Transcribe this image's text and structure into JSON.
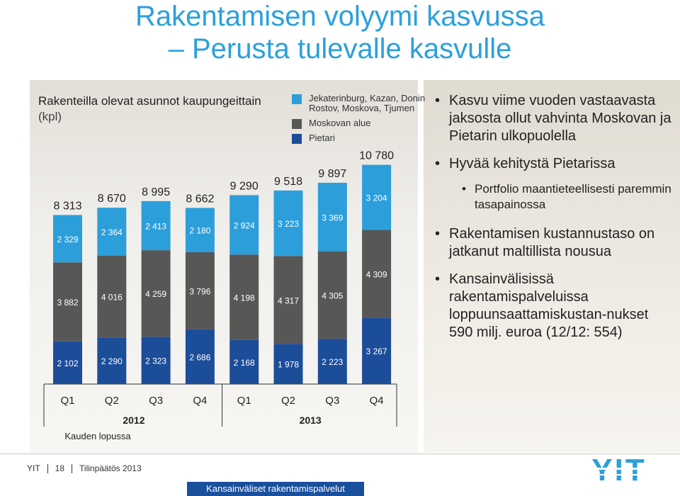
{
  "page": {
    "title_line1": "Rakentamisen volyymi kasvussa",
    "title_line2": "– Perusta tulevalle kasvulle"
  },
  "chart_data": {
    "type": "bar",
    "stacked": true,
    "title": "Rakenteilla olevat asunnot kaupungeittain",
    "subtitle": "(kpl)",
    "categories": [
      "Q1",
      "Q2",
      "Q3",
      "Q4",
      "Q1",
      "Q2",
      "Q3",
      "Q4"
    ],
    "groups": [
      {
        "label": "2012",
        "categories": [
          0,
          1,
          2,
          3
        ]
      },
      {
        "label": "2013",
        "categories": [
          4,
          5,
          6,
          7
        ]
      }
    ],
    "xlabel": "Kauden lopussa",
    "series": [
      {
        "name": "Pietari",
        "color": "#1c4d99",
        "values": [
          2102,
          2290,
          2323,
          2686,
          2168,
          1978,
          2223,
          3267
        ],
        "labels": [
          "2 102",
          "2 290",
          "2 323",
          "2 686",
          "2 168",
          "1 978",
          "2 223",
          "3 267"
        ]
      },
      {
        "name": "Moskovan alue",
        "color": "#575757",
        "values": [
          3882,
          4016,
          4259,
          3796,
          4198,
          4317,
          4305,
          4309
        ],
        "labels": [
          "3 882",
          "4 016",
          "4 259",
          "3 796",
          "4 198",
          "4 317",
          "4 305",
          "4 309"
        ]
      },
      {
        "name": "Jekaterinburg, Kazan, Donin Rostov, Moskova, Tjumen",
        "color": "#2c9fdb",
        "values": [
          2329,
          2364,
          2413,
          2180,
          2924,
          3223,
          3369,
          3204
        ],
        "labels": [
          "2 329",
          "2 364",
          "2 413",
          "2 180",
          "2 924",
          "3 223",
          "3 369",
          "3 204"
        ]
      }
    ],
    "totals": [
      8313,
      8670,
      8995,
      8662,
      9290,
      9518,
      9897,
      10780
    ],
    "total_labels": [
      "8 313",
      "8 670",
      "8 995",
      "8 662",
      "9 290",
      "9 518",
      "9 897",
      "10 780"
    ],
    "legend_order": [
      2,
      1,
      0
    ],
    "legend_position": "top-right"
  },
  "bullets": [
    {
      "text": "Kasvu viime vuoden vastaavasta jaksosta ollut vahvinta Moskovan ja Pietarin ulkopuolella",
      "sub": []
    },
    {
      "text": "Hyvää kehitystä Pietarissa",
      "sub": [
        "Portfolio maantieteellisesti paremmin tasapainossa"
      ]
    },
    {
      "text": "Rakentamisen kustannustaso on jatkanut maltillista nousua",
      "sub": []
    },
    {
      "text": "Kansainvälisissä rakentamispalveluissa loppuunsaattamiskustan-nukset 590 milj. euroa (12/12: 554)",
      "sub": []
    }
  ],
  "footer": {
    "company": "YIT",
    "page_number": "18",
    "report": "Tilinpäätös 2013",
    "bar_text": "Kansainväliset rakentamispalvelut",
    "logo_text": "YIT"
  }
}
